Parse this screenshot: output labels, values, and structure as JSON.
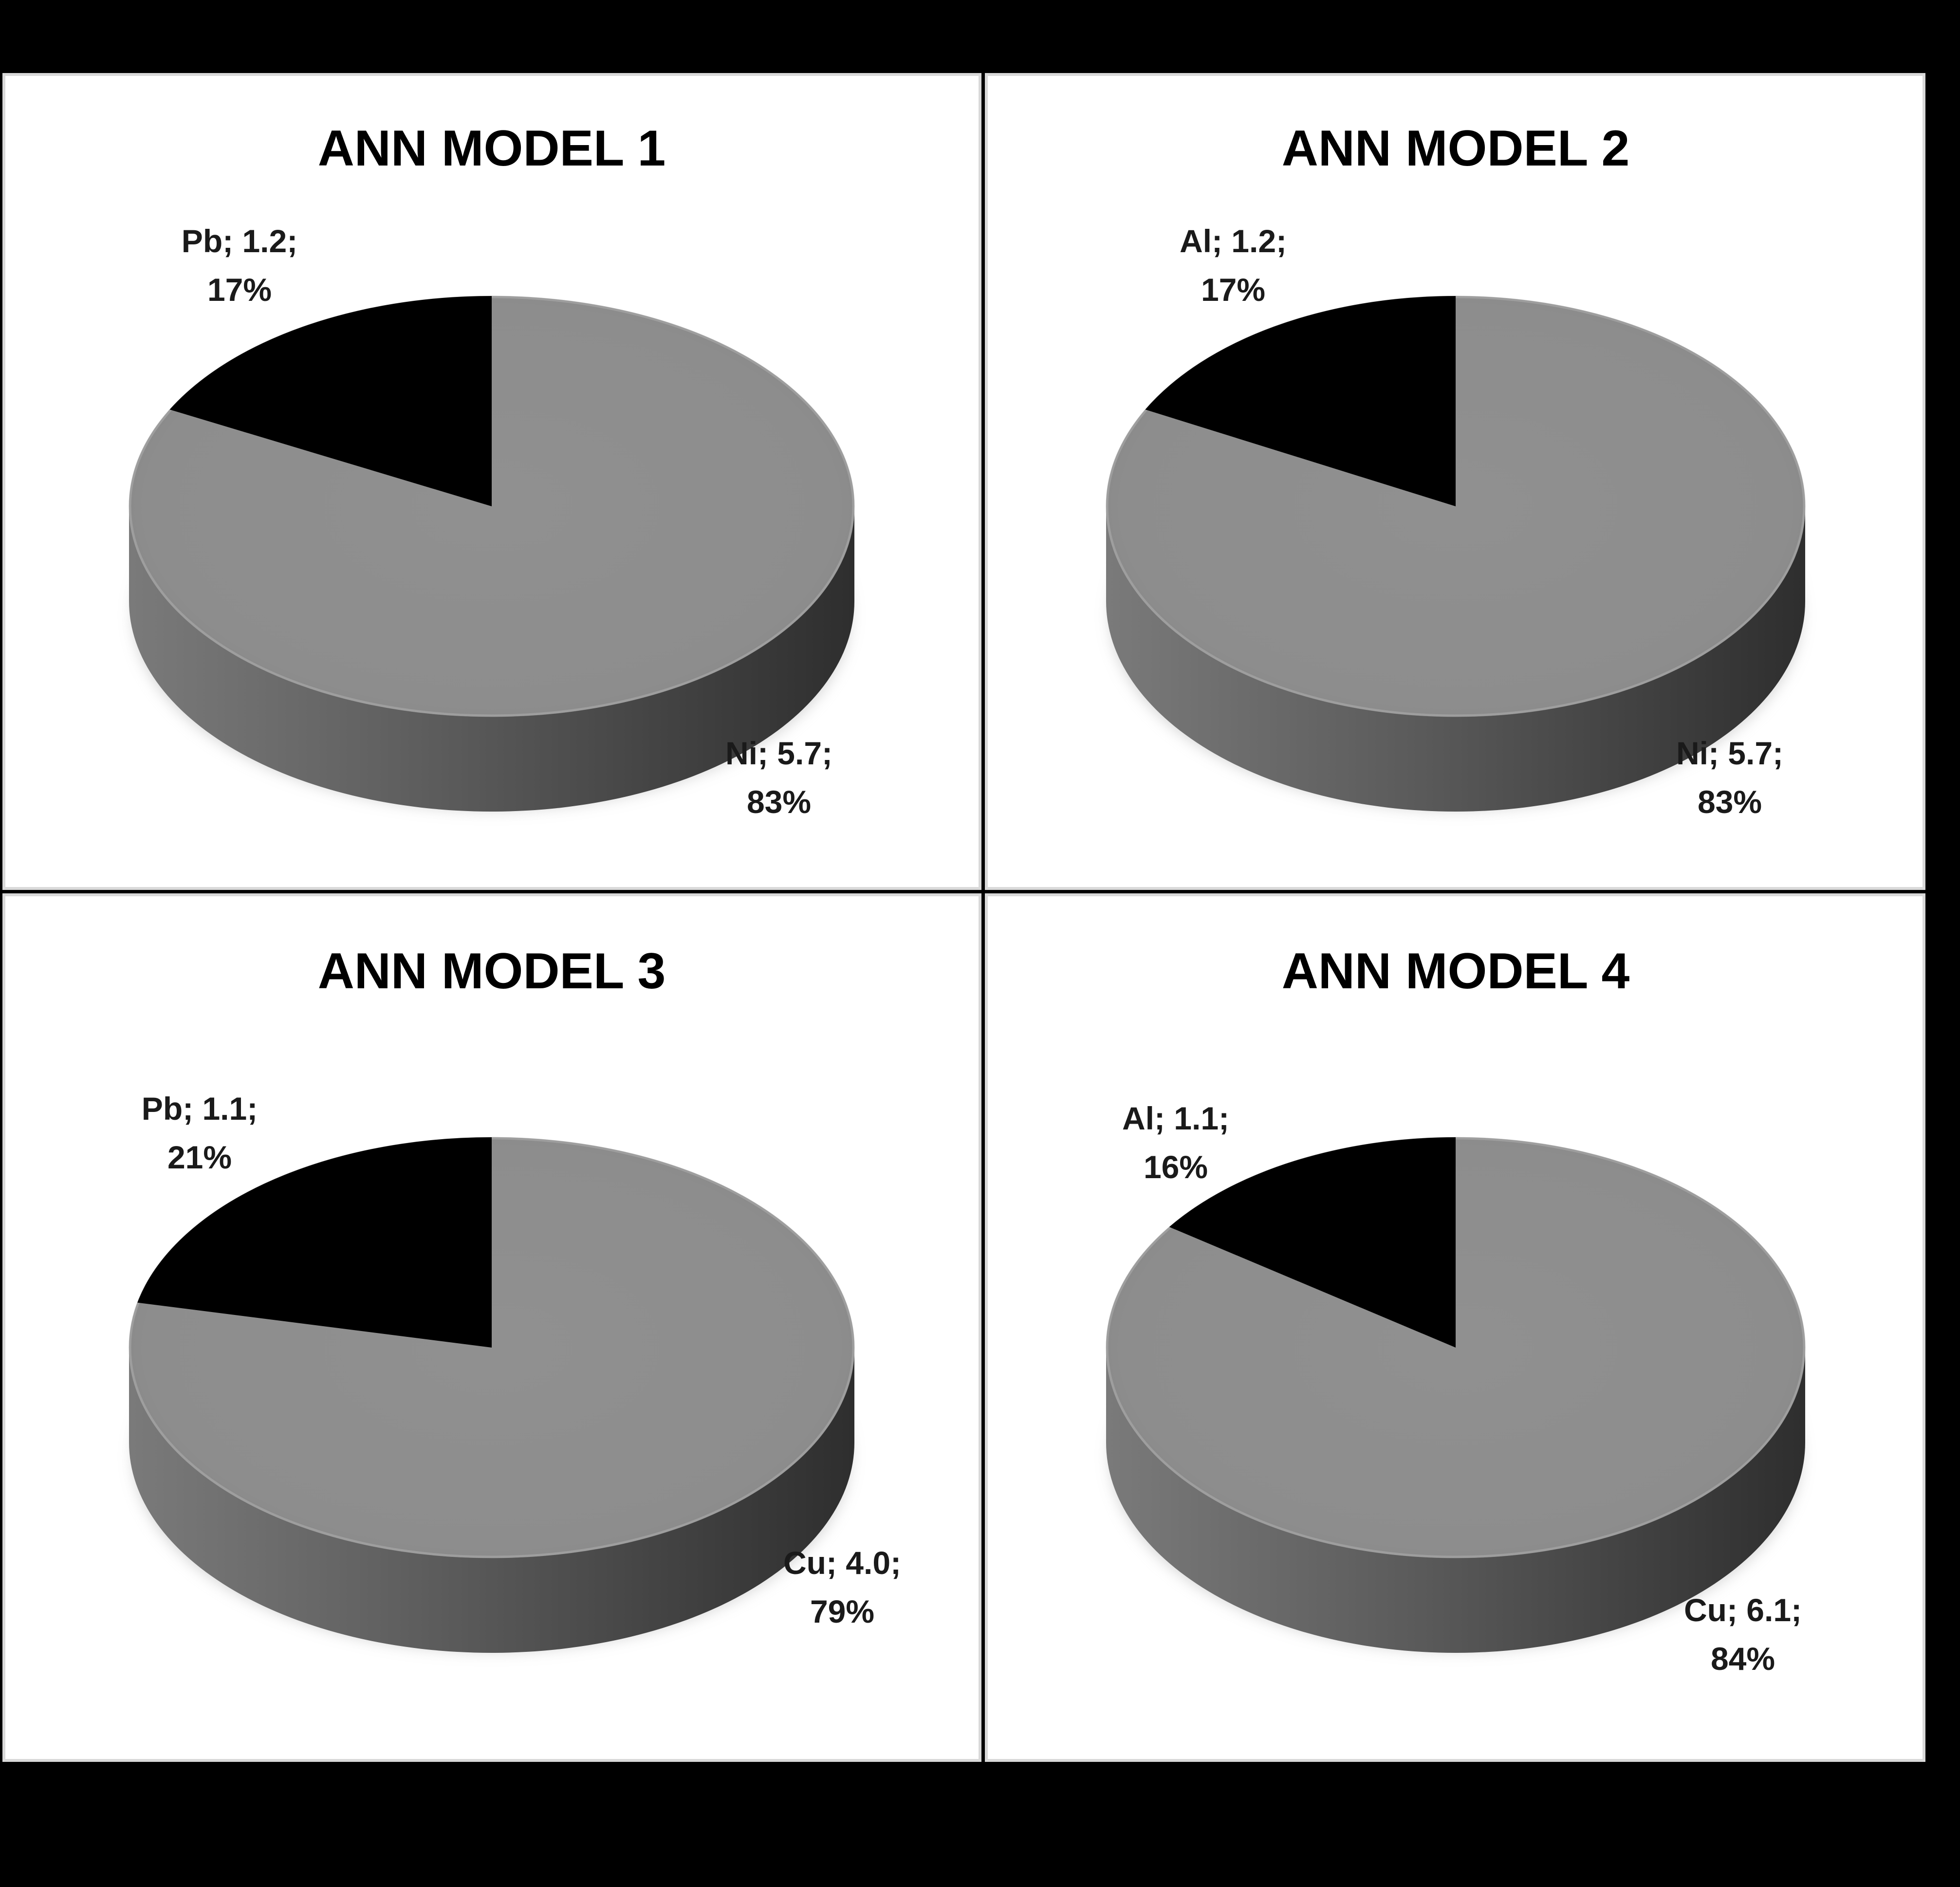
{
  "colors": {
    "background": "#000000",
    "panel": "#ffffff",
    "panel_border": "#d9d9d9",
    "major_slice": "#8f8f8f",
    "minor_slice": "#000000",
    "label_text": "#1a1a1a"
  },
  "chart_data": [
    {
      "type": "pie",
      "style": "3d",
      "title": "ANN MODEL 1",
      "categories": [
        "Ni",
        "Pb"
      ],
      "values": [
        5.7,
        1.2
      ],
      "percents": [
        "83%",
        "17%"
      ],
      "labels": [
        {
          "line1": "Ni; 5.7;",
          "line2": "83%"
        },
        {
          "line1": "Pb; 1.2;",
          "line2": "17%"
        }
      ]
    },
    {
      "type": "pie",
      "style": "3d",
      "title": "ANN MODEL 2",
      "categories": [
        "Ni",
        "Al"
      ],
      "values": [
        5.7,
        1.2
      ],
      "percents": [
        "83%",
        "17%"
      ],
      "labels": [
        {
          "line1": "Ni; 5.7;",
          "line2": "83%"
        },
        {
          "line1": "Al; 1.2;",
          "line2": "17%"
        }
      ]
    },
    {
      "type": "pie",
      "style": "3d",
      "title": "ANN MODEL 3",
      "categories": [
        "Cu",
        "Pb"
      ],
      "values": [
        4.0,
        1.1
      ],
      "percents": [
        "79%",
        "21%"
      ],
      "labels": [
        {
          "line1": "Cu; 4.0;",
          "line2": "79%"
        },
        {
          "line1": "Pb; 1.1;",
          "line2": "21%"
        }
      ]
    },
    {
      "type": "pie",
      "style": "3d",
      "title": "ANN MODEL 4",
      "categories": [
        "Cu",
        "Al"
      ],
      "values": [
        6.1,
        1.1
      ],
      "percents": [
        "84%",
        "16%"
      ],
      "labels": [
        {
          "line1": "Cu; 6.1;",
          "line2": "84%"
        },
        {
          "line1": "Al; 1.1;",
          "line2": "16%"
        }
      ]
    }
  ]
}
